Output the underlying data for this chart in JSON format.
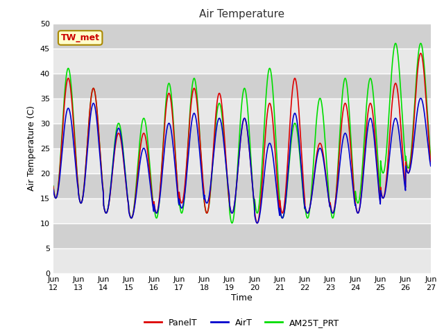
{
  "title": "Air Temperature",
  "ylabel": "Air Temperature (C)",
  "xlabel": "Time",
  "ylim": [
    0,
    50
  ],
  "yticks": [
    0,
    5,
    10,
    15,
    20,
    25,
    30,
    35,
    40,
    45,
    50
  ],
  "x_tick_labels": [
    "Jun\n12",
    "Jun\n13",
    "Jun\n14",
    "Jun\n15",
    "Jun\n16",
    "Jun\n17",
    "Jun\n18",
    "Jun\n19",
    "Jun\n20",
    "Jun\n21",
    "Jun\n22",
    "Jun\n23",
    "Jun\n24",
    "Jun\n25",
    "Jun\n26",
    "Jun\n27"
  ],
  "annotation_text": "TW_met",
  "annotation_color": "#cc0000",
  "annotation_bg": "#ffffcc",
  "annotation_border": "#aa8800",
  "series_colors": [
    "#dd0000",
    "#0000cc",
    "#00dd00"
  ],
  "series_labels": [
    "PanelT",
    "AirT",
    "AM25T_PRT"
  ],
  "plot_bg_color": "#e8e8e8",
  "fig_bg_color": "#ffffff",
  "n_days": 15,
  "samples_per_day": 96,
  "panel_peaks": [
    39,
    37,
    28,
    28,
    36,
    37,
    36,
    31,
    34,
    39,
    26,
    34,
    34,
    38,
    44
  ],
  "panel_troughs": [
    15,
    14,
    12,
    11,
    12,
    14,
    12,
    12,
    10,
    12,
    12,
    12,
    12,
    15,
    20
  ],
  "air_peaks": [
    33,
    34,
    29,
    25,
    30,
    32,
    31,
    31,
    26,
    32,
    25,
    28,
    31,
    31,
    35
  ],
  "air_troughs": [
    15,
    14,
    12,
    11,
    12,
    13,
    14,
    12,
    10,
    11,
    12,
    12,
    12,
    15,
    20
  ],
  "green_peaks": [
    41,
    37,
    30,
    31,
    38,
    39,
    34,
    37,
    41,
    30,
    35,
    39,
    39,
    46,
    46
  ],
  "green_troughs": [
    15,
    14,
    12,
    11,
    11,
    12,
    12,
    10,
    12,
    11,
    11,
    11,
    14,
    20,
    21
  ],
  "stripe_color": "#d0d0d0",
  "stripe_bg": "#e8e8e8"
}
